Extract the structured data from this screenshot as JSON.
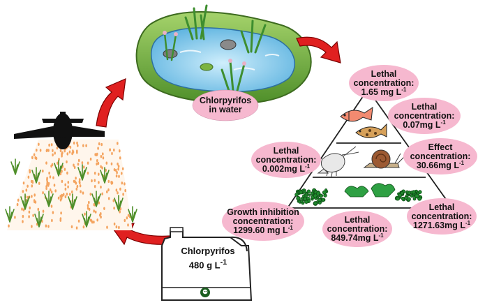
{
  "pond_label": {
    "line1": "Chlorpyrifos",
    "line2": "in water"
  },
  "bottle_label": {
    "line1": "Chlorpyrifos",
    "line2": "480 g L",
    "line2_sup": "-1"
  },
  "bubbles": [
    {
      "line1": "Lethal",
      "line2": "concentration:",
      "line3": "1.65 mg L",
      "sup": "-1"
    },
    {
      "line1": "Lethal",
      "line2": "concentration:",
      "line3": "0.07mg L",
      "sup": "-1"
    },
    {
      "line1": "Lethal",
      "line2": "concentration:",
      "line3": "0.002mg L",
      "sup": "-1"
    },
    {
      "line1": "Effect",
      "line2": "concentration:",
      "line3": "30.66mg L",
      "sup": "-1"
    },
    {
      "line1": "Growth inhibition",
      "line2": "concentration:",
      "line3": "1299.60 mg L",
      "sup": "-1"
    },
    {
      "line1": "Lethal",
      "line2": "concentration:",
      "line3": "849.74mg L",
      "sup": "-1"
    },
    {
      "line1": "Lethal",
      "line2": "concentration:",
      "line3": "1271.63mg L",
      "sup": "-1"
    }
  ],
  "colors": {
    "bubble": "#f6b8cf",
    "arrow": "#e02020",
    "pond": "#8ecae6",
    "grass": "#7cb342",
    "spray": "#f4a460"
  },
  "icons": [
    "airplane-icon",
    "crop-plant-icon",
    "pond-icon",
    "fish-icon",
    "shrimp-icon",
    "snail-icon",
    "algae-icon",
    "pesticide-bottle-icon",
    "skull-icon",
    "cycle-arrow-icon"
  ]
}
